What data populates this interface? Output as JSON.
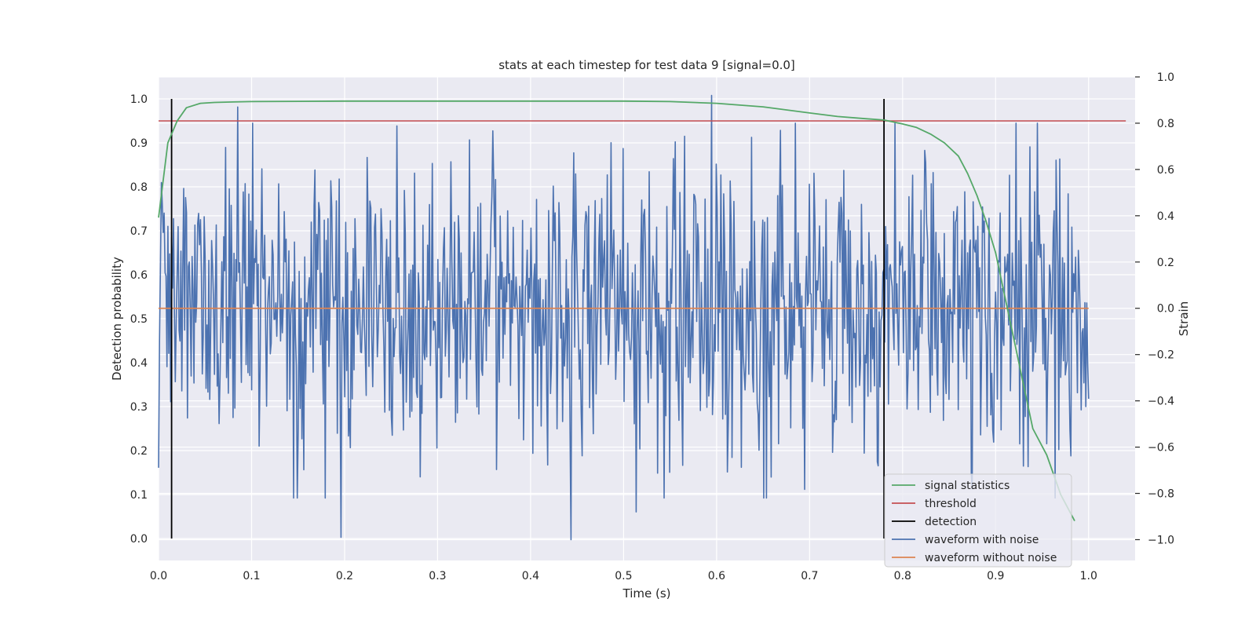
{
  "chart_data": {
    "type": "line",
    "title": "stats at each timestep for test data 9 [signal=0.0]",
    "xlabel": "Time (s)",
    "ylabel": "Detection probability",
    "y2label": "Strain",
    "xlim": [
      0.0,
      1.05
    ],
    "ylim": [
      -0.05,
      1.05
    ],
    "y2lim": [
      -1.09,
      1.0
    ],
    "xticks": [
      0.0,
      0.1,
      0.2,
      0.3,
      0.4,
      0.5,
      0.6,
      0.7,
      0.8,
      0.9,
      1.0
    ],
    "xtick_labels": [
      "0.0",
      "0.1",
      "0.2",
      "0.3",
      "0.4",
      "0.5",
      "0.6",
      "0.7",
      "0.8",
      "0.9",
      "1.0"
    ],
    "yticks": [
      0.0,
      0.1,
      0.2,
      0.3,
      0.4,
      0.5,
      0.6,
      0.7,
      0.8,
      0.9,
      1.0
    ],
    "ytick_labels": [
      "0.0",
      "0.1",
      "0.2",
      "0.3",
      "0.4",
      "0.5",
      "0.6",
      "0.7",
      "0.8",
      "0.9",
      "1.0"
    ],
    "y2ticks": [
      -1.0,
      -0.8,
      -0.6,
      -0.4,
      -0.2,
      0.0,
      0.2,
      0.4,
      0.6,
      0.8,
      1.0
    ],
    "y2tick_labels": [
      "−1.0",
      "−0.8",
      "−0.6",
      "−0.4",
      "−0.2",
      "0.0",
      "0.2",
      "0.4",
      "0.6",
      "0.8",
      "1.0"
    ],
    "grid": true,
    "legend_position": "lower-right",
    "series": [
      {
        "name": "signal statistics",
        "color": "#55a868",
        "axis": "left",
        "x": [
          0.0,
          0.01,
          0.02,
          0.03,
          0.045,
          0.06,
          0.08,
          0.1,
          0.2,
          0.3,
          0.4,
          0.5,
          0.55,
          0.6,
          0.65,
          0.7,
          0.73,
          0.76,
          0.78,
          0.8,
          0.815,
          0.83,
          0.845,
          0.86,
          0.87,
          0.88,
          0.89,
          0.9,
          0.91,
          0.92,
          0.93,
          0.94,
          0.955,
          0.97,
          0.985
        ],
        "y": [
          0.73,
          0.9,
          0.95,
          0.98,
          0.99,
          0.992,
          0.993,
          0.994,
          0.995,
          0.995,
          0.995,
          0.995,
          0.994,
          0.99,
          0.982,
          0.968,
          0.96,
          0.955,
          0.952,
          0.943,
          0.935,
          0.92,
          0.9,
          0.87,
          0.83,
          0.78,
          0.72,
          0.65,
          0.55,
          0.45,
          0.35,
          0.25,
          0.19,
          0.1,
          0.04
        ]
      },
      {
        "name": "threshold",
        "color": "#c44e52",
        "axis": "left",
        "x": [
          0.0,
          1.04
        ],
        "y": [
          0.95,
          0.95
        ]
      },
      {
        "name": "detection",
        "color": "#000000",
        "axis": "left",
        "x": [
          0.014,
          0.78
        ],
        "y_range": [
          0.0,
          1.0
        ]
      },
      {
        "name": "waveform with noise",
        "color": "#4c72b0",
        "axis": "right",
        "x_range": [
          0.0,
          1.0
        ],
        "n_points": 1000,
        "y_peaks": [
          [
            0.085,
            0.87
          ],
          [
            0.595,
            0.92
          ],
          [
            0.443,
            -1.0
          ],
          [
            0.196,
            -0.99
          ],
          [
            0.514,
            -0.88
          ]
        ]
      },
      {
        "name": "waveform without noise",
        "color": "#dd8452",
        "axis": "right",
        "x": [
          0.0,
          1.0
        ],
        "y": [
          0.0,
          0.0
        ]
      }
    ]
  }
}
